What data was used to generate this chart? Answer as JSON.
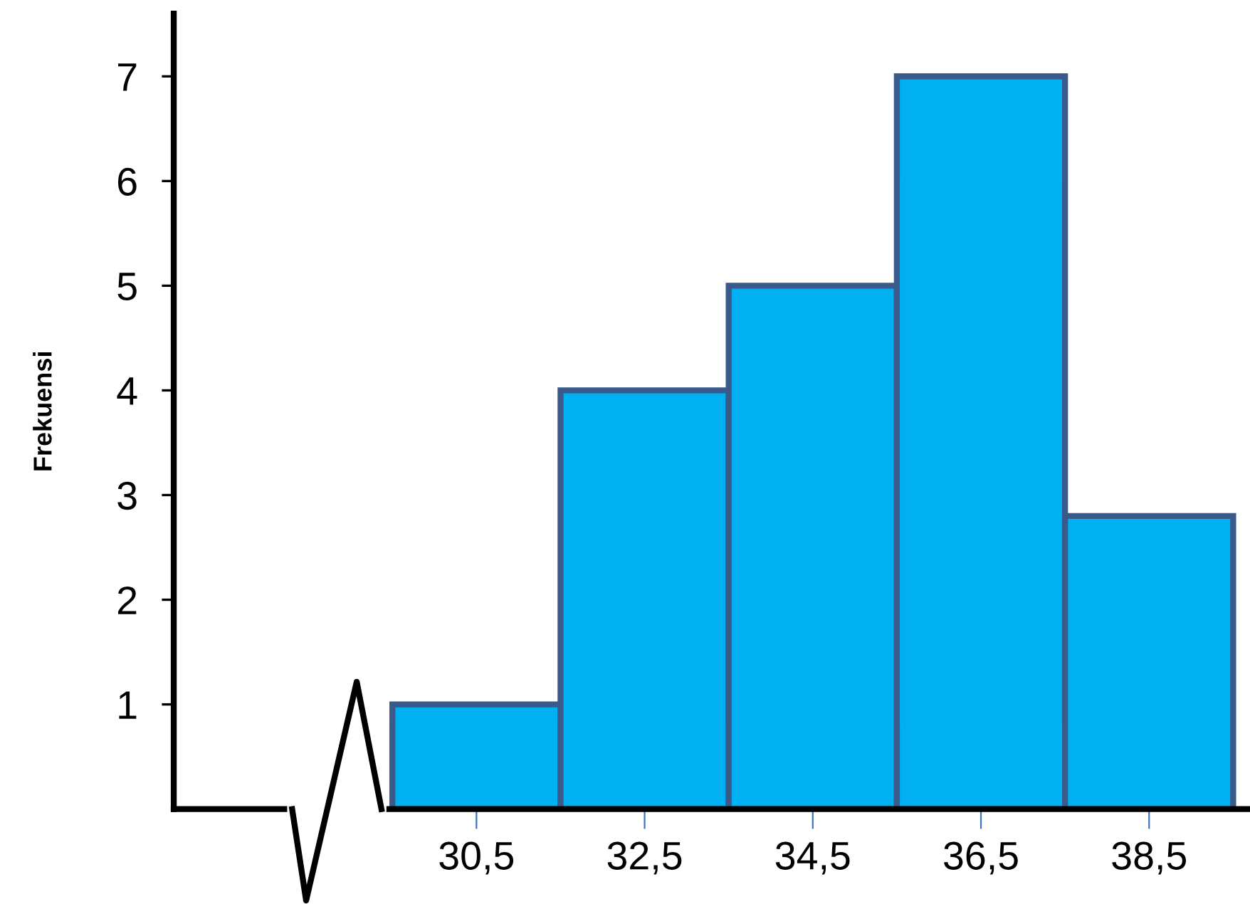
{
  "chart_data": {
    "type": "histogram",
    "ylabel": "Frekuensi",
    "bins": [
      29.5,
      31.5,
      33.5,
      35.5,
      37.5,
      39.5
    ],
    "values": [
      1,
      4,
      5,
      7,
      2.8
    ],
    "color": "#00b0f0",
    "xlim": [
      26.9,
      39.7
    ],
    "ylim": [
      0,
      7.6
    ],
    "xticks": [
      {
        "value": 30.5,
        "label": "30,5"
      },
      {
        "value": 32.5,
        "label": "32,5"
      },
      {
        "value": 34.5,
        "label": "34,5"
      },
      {
        "value": 36.5,
        "label": "36,5"
      },
      {
        "value": 38.5,
        "label": "38,5"
      }
    ],
    "yticks": [
      1,
      2,
      3,
      4,
      5,
      6,
      7
    ],
    "grid": false
  }
}
